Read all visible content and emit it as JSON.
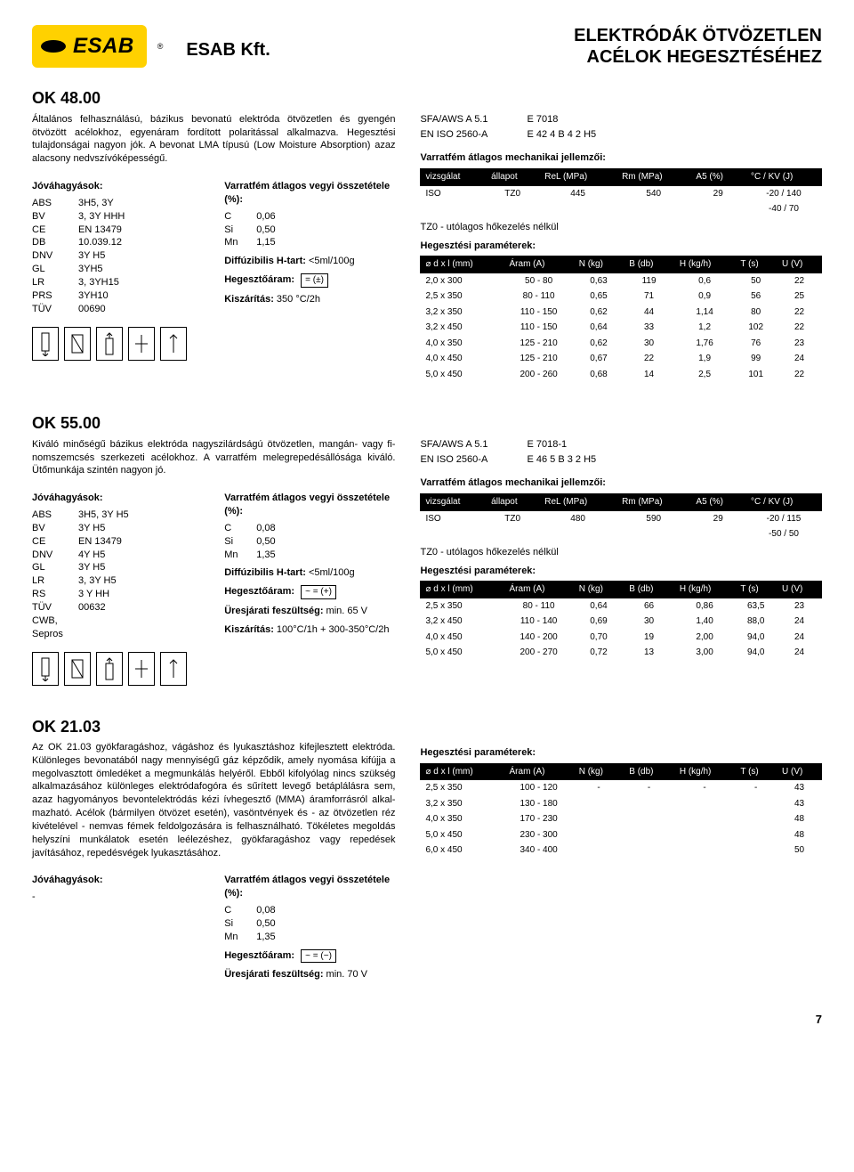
{
  "header": {
    "logo_text": "ESAB",
    "company": "ESAB Kft.",
    "title_line1": "ELEKTRÓDÁK ÖTVÖZETLEN",
    "title_line2": "ACÉLOK HEGESZTÉSÉHEZ"
  },
  "products": [
    {
      "name": "OK 48.00",
      "desc": "Általános felhasználású, bázikus bevonatú elektróda ötvözetlen és gyengén ötvözött acélokhoz, egyenáram fordított polaritással alkalmazva. Hegesztési tulajdonságai nagyon jók. A bevonat LMA típusú (Low Moisture Absorption) azaz alacsony ned­vszívóképességű.",
      "approvals_h": "Jóváhagyások:",
      "approvals": [
        [
          "ABS",
          "3H5, 3Y"
        ],
        [
          "BV",
          "3, 3Y HHH"
        ],
        [
          "CE",
          "EN 13479"
        ],
        [
          "DB",
          "10.039.12"
        ],
        [
          "DNV",
          "3Y H5"
        ],
        [
          "GL",
          "3YH5"
        ],
        [
          "LR",
          "3, 3YH15"
        ],
        [
          "PRS",
          "3YH10"
        ],
        [
          "TÜV",
          "00690"
        ]
      ],
      "comp_h": "Varratfém átlagos vegyi összetétele (%):",
      "comp": [
        [
          "C",
          "0,06"
        ],
        [
          "Si",
          "0,50"
        ],
        [
          "Mn",
          "1,15"
        ]
      ],
      "diff": "Diffúzibilis H-tart: <5ml/100g",
      "current_label": "Hegesztőáram:",
      "current_sym": "= (±)",
      "drying": "Kiszárítás: 350 °C/2h",
      "icons": 5,
      "spec1": [
        "SFA/AWS A 5.1",
        "E 7018"
      ],
      "spec2": [
        "EN ISO 2560-A",
        "E 42 4 B 4 2 H5"
      ],
      "mech_h": "Varratfém átlagos mechanikai jellemzői:",
      "mech_cols": [
        "vizsgálat",
        "állapot",
        "ReL (MPa)",
        "Rm (MPa)",
        "A5 (%)",
        "°C / KV (J)"
      ],
      "mech_rows": [
        [
          "ISO",
          "TZ0",
          "445",
          "540",
          "29",
          "-20 / 140"
        ],
        [
          "",
          "",
          "",
          "",
          "",
          "-40 /  70"
        ]
      ],
      "mech_note": "TZ0 - utólagos hőkezelés nélkül",
      "param_h": "Hegesztési paraméterek:",
      "param_cols": [
        "⌀ d x l (mm)",
        "Áram (A)",
        "N (kg)",
        "B (db)",
        "H (kg/h)",
        "T (s)",
        "U (V)"
      ],
      "param_rows": [
        [
          "2,0 x 300",
          "50 - 80",
          "0,63",
          "119",
          "0,6",
          "50",
          "22"
        ],
        [
          "2,5 x 350",
          "80 - 110",
          "0,65",
          "71",
          "0,9",
          "56",
          "25"
        ],
        [
          "3,2 x 350",
          "110 - 150",
          "0,62",
          "44",
          "1,14",
          "80",
          "22"
        ],
        [
          "3,2 x 450",
          "110 - 150",
          "0,64",
          "33",
          "1,2",
          "102",
          "22"
        ],
        [
          "4,0 x 350",
          "125 - 210",
          "0,62",
          "30",
          "1,76",
          "76",
          "23"
        ],
        [
          "4,0 x 450",
          "125 - 210",
          "0,67",
          "22",
          "1,9",
          "99",
          "24"
        ],
        [
          "5,0 x 450",
          "200 - 260",
          "0,68",
          "14",
          "2,5",
          "101",
          "22"
        ]
      ]
    },
    {
      "name": "OK 55.00",
      "desc": "Kiváló minőségű bázikus elektróda nagyszilárdságú ötvözetlen, mangán- vagy fi­nomszemcsés szerkezeti acélokhoz. A varratfém melegrepedésállósága kiváló. Ütőmunkája szintén nagyon jó.",
      "approvals_h": "Jóváhagyások:",
      "approvals": [
        [
          "ABS",
          "3H5, 3Y H5"
        ],
        [
          "BV",
          "3Y H5"
        ],
        [
          "CE",
          "EN 13479"
        ],
        [
          "DNV",
          "4Y H5"
        ],
        [
          "GL",
          "3Y H5"
        ],
        [
          "LR",
          "3, 3Y H5"
        ],
        [
          "RS",
          "3 Y HH"
        ],
        [
          "TÜV",
          "00632"
        ],
        [
          "CWB, Sepros",
          ""
        ]
      ],
      "comp_h": "Varratfém átlagos vegyi összetétele (%):",
      "comp": [
        [
          "C",
          "0,08"
        ],
        [
          "Si",
          "0,50"
        ],
        [
          "Mn",
          "1,35"
        ]
      ],
      "diff": "Diffúzibilis H-tart: <5ml/100g",
      "current_label": "Hegesztőáram:",
      "current_sym": "~ = (+)",
      "ocv": "Üresjárati feszültség: min. 65 V",
      "drying": "Kiszárítás: 100°C/1h + 300-350°C/2h",
      "icons": 5,
      "spec1": [
        "SFA/AWS A 5.1",
        "E 7018-1"
      ],
      "spec2": [
        "EN ISO 2560-A",
        "E 46 5 B 3 2 H5"
      ],
      "mech_h": "Varratfém átlagos mechanikai jellemzői:",
      "mech_cols": [
        "vizsgálat",
        "állapot",
        "ReL (MPa)",
        "Rm (MPa)",
        "A5 (%)",
        "°C / KV (J)"
      ],
      "mech_rows": [
        [
          "ISO",
          "TZ0",
          "480",
          "590",
          "29",
          "-20 / 115"
        ],
        [
          "",
          "",
          "",
          "",
          "",
          "-50 /  50"
        ]
      ],
      "mech_note": "TZ0 - utólagos hőkezelés nélkül",
      "param_h": "Hegesztési paraméterek:",
      "param_cols": [
        "⌀ d x l (mm)",
        "Áram (A)",
        "N (kg)",
        "B (db)",
        "H (kg/h)",
        "T (s)",
        "U (V)"
      ],
      "param_rows": [
        [
          "2,5 x 350",
          "80 - 110",
          "0,64",
          "66",
          "0,86",
          "63,5",
          "23"
        ],
        [
          "3,2 x 450",
          "110 - 140",
          "0,69",
          "30",
          "1,40",
          "88,0",
          "24"
        ],
        [
          "4,0 x 450",
          "140 - 200",
          "0,70",
          "19",
          "2,00",
          "94,0",
          "24"
        ],
        [
          "5,0 x 450",
          "200 - 270",
          "0,72",
          "13",
          "3,00",
          "94,0",
          "24"
        ]
      ]
    },
    {
      "name": "OK 21.03",
      "desc": "Az OK 21.03 gyökfaragáshoz, vágáshoz és lyukasztáshoz kifejlesztett elektróda. Különleges bevonatából nagy mennyiségű gáz képződik, amely nyomása kifújja a megolvasztott ömledéket a megmunkálás helyéről. Ebből kifolyólag nincs szükség alkalmazásához különleges elektródafogóra és sűrített levegő betáplálásra sem, azaz hagyományos bevontelektródás kézi ívhegesztő (MMA) áramforrásról alkal­mazható. Acélok (bármilyen ötvözet esetén), vasöntvények és - az ötvözetlen réz kivételével - nemvas fémek feldolgozására is felhasználható. Tökéletes megoldás helyszíni munkálatok esetén leélezéshez, gyökfaragáshoz vagy repedések javításához, repedésvégek lyukasztásához.",
      "approvals_h": "Jóváhagyások:",
      "approvals": [
        [
          "-",
          ""
        ]
      ],
      "comp_h": "Varratfém átlagos vegyi összetétele (%):",
      "comp": [
        [
          "C",
          "0,08"
        ],
        [
          "Si",
          "0,50"
        ],
        [
          "Mn",
          "1,35"
        ]
      ],
      "current_label": "Hegesztőáram:",
      "current_sym": "~ = (−)",
      "ocv": "Üresjárati feszültség: min. 70 V",
      "icons": 0,
      "param_h": "Hegesztési paraméterek:",
      "param_cols": [
        "⌀ d x l (mm)",
        "Áram (A)",
        "N (kg)",
        "B (db)",
        "H (kg/h)",
        "T (s)",
        "U (V)"
      ],
      "param_rows": [
        [
          "2,5 x 350",
          "100 - 120",
          "-",
          "-",
          "-",
          "-",
          "43"
        ],
        [
          "3,2 x 350",
          "130 - 180",
          "",
          "",
          "",
          "",
          "43"
        ],
        [
          "4,0 x 350",
          "170 - 230",
          "",
          "",
          "",
          "",
          "48"
        ],
        [
          "5,0 x 450",
          "230 - 300",
          "",
          "",
          "",
          "",
          "48"
        ],
        [
          "6,0 x 450",
          "340 - 400",
          "",
          "",
          "",
          "",
          "50"
        ]
      ]
    }
  ],
  "page_number": "7",
  "colors": {
    "brand_yellow": "#ffd100",
    "table_header_bg": "#000000",
    "table_header_fg": "#ffffff",
    "text": "#000000"
  }
}
